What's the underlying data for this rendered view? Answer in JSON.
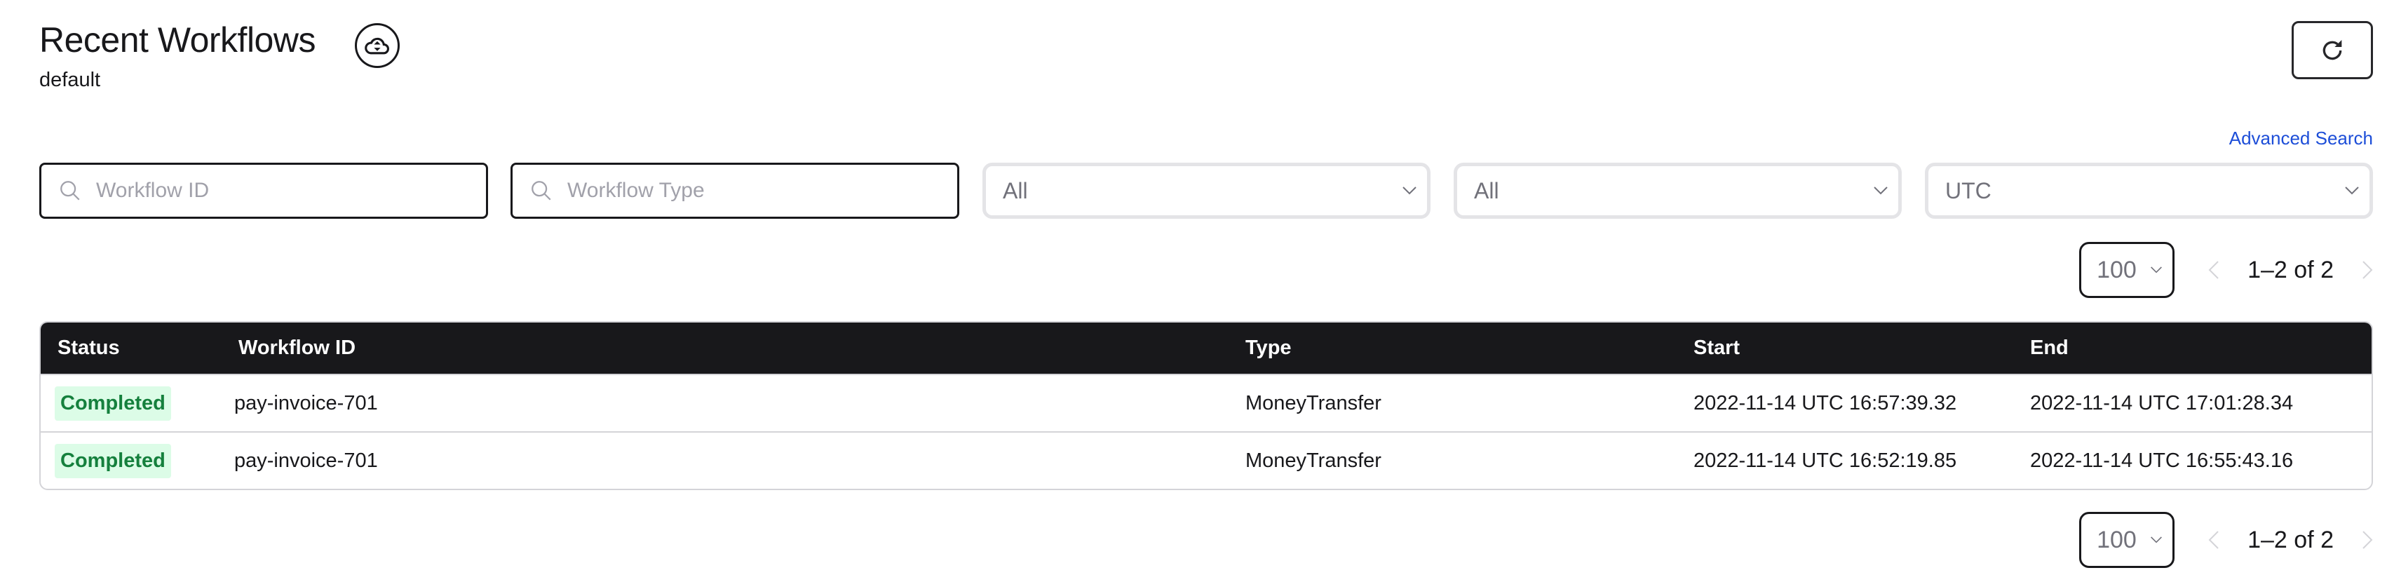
{
  "header": {
    "title": "Recent Workflows",
    "namespace": "default",
    "archive_icon": "cloud-archive-icon",
    "refresh_icon": "refresh-icon"
  },
  "filters": {
    "advanced_search": "Advanced Search",
    "workflow_id_placeholder": "Workflow ID",
    "workflow_type_placeholder": "Workflow Type",
    "status_select": "All",
    "time_range_select": "All",
    "timezone_select": "UTC"
  },
  "pagination": {
    "page_size": "100",
    "range": "1–2 of 2"
  },
  "table": {
    "columns": [
      "Status",
      "Workflow ID",
      "Type",
      "Start",
      "End"
    ],
    "rows": [
      {
        "status": "Completed",
        "workflow_id": "pay-invoice-701",
        "type": "MoneyTransfer",
        "start": "2022-11-14 UTC 16:57:39.32",
        "end": "2022-11-14 UTC 17:01:28.34"
      },
      {
        "status": "Completed",
        "workflow_id": "pay-invoice-701",
        "type": "MoneyTransfer",
        "start": "2022-11-14 UTC 16:52:19.85",
        "end": "2022-11-14 UTC 16:55:43.16"
      }
    ]
  },
  "colors": {
    "accent_link": "#1d4ed8",
    "completed_bg": "#dcfce7",
    "completed_text": "#15803d",
    "table_header": "#18181b"
  }
}
